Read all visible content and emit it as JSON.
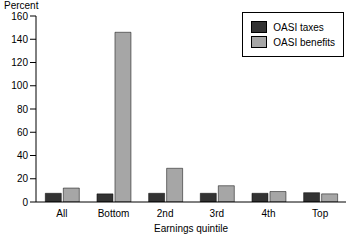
{
  "chart_data": {
    "type": "bar",
    "y_label": "Percent",
    "x_label": "Earnings quintile",
    "categories": [
      "All",
      "Bottom",
      "2nd",
      "3rd",
      "4th",
      "Top"
    ],
    "series": [
      {
        "name": "OASI taxes",
        "color": "#333333",
        "values": [
          7.5,
          7,
          7.5,
          7.5,
          7.5,
          8
        ]
      },
      {
        "name": "OASI benefits",
        "color": "#a6a6a6",
        "values": [
          12,
          146,
          29,
          14,
          9,
          7
        ]
      }
    ],
    "ylim": [
      0,
      160
    ],
    "yticks": [
      0,
      20,
      40,
      60,
      80,
      100,
      120,
      140,
      160
    ],
    "legend": "top-right",
    "grid": false
  }
}
